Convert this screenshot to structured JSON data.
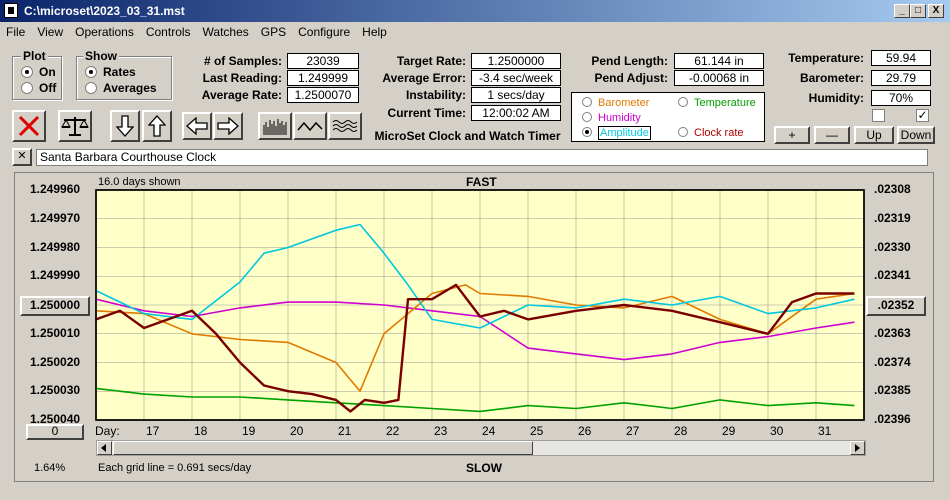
{
  "window": {
    "title": "C:\\microset\\2023_03_31.mst",
    "min": "_",
    "max": "□",
    "close": "X"
  },
  "menu": [
    "File",
    "View",
    "Operations",
    "Controls",
    "Watches",
    "GPS",
    "Configure",
    "Help"
  ],
  "plot_group": {
    "title": "Plot",
    "options": [
      {
        "label": "On",
        "selected": true
      },
      {
        "label": "Off",
        "selected": false
      }
    ]
  },
  "show_group": {
    "title": "Show",
    "options": [
      {
        "label": "Rates",
        "selected": true
      },
      {
        "label": "Averages",
        "selected": false
      }
    ]
  },
  "readings": {
    "samples_label": "# of Samples:",
    "samples": "23039",
    "last_label": "Last Reading:",
    "last": "1.249999",
    "avg_rate_label": "Average Rate:",
    "avg_rate": "1.2500070",
    "target_label": "Target Rate:",
    "target": "1.2500000",
    "avg_error_label": "Average Error:",
    "avg_error": "-3.4 sec/week",
    "instability_label": "Instability:",
    "instability": "1 secs/day",
    "current_time_label": "Current Time:",
    "current_time": "12:00:02 AM",
    "pend_length_label": "Pend Length:",
    "pend_length": "61.144 in",
    "pend_adjust_label": "Pend Adjust:",
    "pend_adjust": "-0.00068 in",
    "temperature_label": "Temperature:",
    "temperature": "59.94",
    "barometer_label": "Barometer:",
    "barometer": "29.79",
    "humidity_label": "Humidity:",
    "humidity": "70%"
  },
  "app_caption": "MicroSet Clock and Watch Timer",
  "selector": {
    "items": [
      {
        "label": "Barometer",
        "color": "#e07a00",
        "selected": false
      },
      {
        "label": "Temperature",
        "color": "#00a000",
        "selected": false
      },
      {
        "label": "Humidity",
        "color": "#d000d0",
        "selected": false
      },
      {
        "label": "Amplitude",
        "color": "#00c8e0",
        "selected": true
      },
      {
        "label": "Clock rate",
        "color": "#b00000",
        "selected": false
      }
    ]
  },
  "right_buttons": {
    "plus": "+",
    "minus": "—",
    "up": "Up",
    "down": "Down"
  },
  "checkboxes": [
    {
      "checked": false
    },
    {
      "checked": true
    }
  ],
  "clock_name": "Santa Barbara Courthouse Clock",
  "name_clear": "✕",
  "chart_info": {
    "days_shown": "16.0 days shown",
    "fast": "FAST",
    "slow": "SLOW",
    "grid_note": "Each grid line = 0.691 secs/day",
    "percent": "1.64%",
    "day_label": "Day:",
    "center_left_button": "1.250000",
    "center_right_button": ".02352",
    "offset_button": "0"
  },
  "chart_data": {
    "type": "line",
    "x_label": "Day:",
    "x_ticks": [
      17,
      18,
      19,
      20,
      21,
      22,
      23,
      24,
      25,
      26,
      27,
      28,
      29,
      30,
      31
    ],
    "x_range": [
      16.0,
      32.0
    ],
    "y_left_ticks": [
      "1.249960",
      "1.249970",
      "1.249980",
      "1.249990",
      "1.250000",
      "1.250010",
      "1.250020",
      "1.250030",
      "1.250040"
    ],
    "y_left_range": [
      1.24996,
      1.25004
    ],
    "y_right_ticks": [
      ".02308",
      ".02319",
      ".02330",
      ".02341",
      ".02352",
      ".02363",
      ".02374",
      ".02385",
      ".02396"
    ],
    "y_right_range": [
      0.02308,
      0.02396
    ],
    "inverted_y": true,
    "grid": true,
    "series": [
      {
        "name": "Temperature",
        "color": "#00a000",
        "x": [
          16.0,
          17,
          18,
          19,
          20,
          21,
          22,
          23,
          24,
          25,
          26,
          27,
          28,
          29,
          30,
          31,
          31.8
        ],
        "y": [
          1.250029,
          1.250031,
          1.250032,
          1.250032,
          1.250033,
          1.250034,
          1.250035,
          1.250036,
          1.250037,
          1.250035,
          1.250036,
          1.250034,
          1.250036,
          1.250033,
          1.250035,
          1.250034,
          1.250035
        ]
      },
      {
        "name": "Humidity",
        "color": "#d000d0",
        "x": [
          16.0,
          17,
          18,
          19,
          20,
          21,
          22,
          23,
          24,
          25,
          26,
          27,
          28,
          29,
          30,
          31,
          31.8
        ],
        "y": [
          1.249998,
          1.250002,
          1.250004,
          1.250001,
          1.249999,
          1.249999,
          1.25,
          1.250002,
          1.250004,
          1.250015,
          1.250017,
          1.250019,
          1.250017,
          1.250013,
          1.250011,
          1.250008,
          1.250006
        ]
      },
      {
        "name": "Barometer",
        "color": "#e07a00",
        "x": [
          16.0,
          17,
          18,
          19,
          20,
          21,
          21.5,
          22,
          23,
          23.7,
          24,
          25,
          26,
          27,
          28,
          29,
          30,
          31,
          31.8
        ],
        "y": [
          1.250002,
          1.250003,
          1.25001,
          1.250012,
          1.250013,
          1.25002,
          1.25003,
          1.25001,
          1.249996,
          1.249993,
          1.249996,
          1.249997,
          1.25,
          1.250001,
          1.249997,
          1.250005,
          1.25001,
          1.249998,
          1.249996
        ]
      },
      {
        "name": "Amplitude",
        "color": "#00c8e0",
        "x": [
          16.0,
          17,
          18,
          19,
          19.5,
          20,
          21,
          21.5,
          22,
          22.5,
          23,
          24,
          25,
          26,
          27,
          28,
          29,
          30,
          31,
          31.8
        ],
        "y": [
          1.249995,
          1.250003,
          1.250005,
          1.249992,
          1.249982,
          1.24998,
          1.249974,
          1.249972,
          1.249982,
          1.249993,
          1.250005,
          1.250008,
          1.25,
          1.250001,
          1.249998,
          1.25,
          1.249997,
          1.250003,
          1.250001,
          1.249998
        ]
      },
      {
        "name": "Clock rate",
        "color": "#7a0000",
        "x": [
          16.0,
          16.5,
          17,
          17.5,
          18,
          18.5,
          19,
          19.5,
          20,
          20.5,
          21,
          21.3,
          21.6,
          22,
          22.3,
          22.5,
          23,
          23.5,
          24,
          24.5,
          25,
          26,
          27,
          28,
          29,
          30,
          30.5,
          31,
          31.8
        ],
        "y": [
          1.250005,
          1.250002,
          1.250008,
          1.250005,
          1.250002,
          1.25001,
          1.25002,
          1.250028,
          1.25003,
          1.250031,
          1.250033,
          1.250037,
          1.250033,
          1.250034,
          1.250033,
          1.249998,
          1.249998,
          1.249993,
          1.250004,
          1.250002,
          1.250005,
          1.250002,
          1.25,
          1.250002,
          1.250006,
          1.25001,
          1.249999,
          1.249996,
          1.249996
        ]
      }
    ]
  }
}
